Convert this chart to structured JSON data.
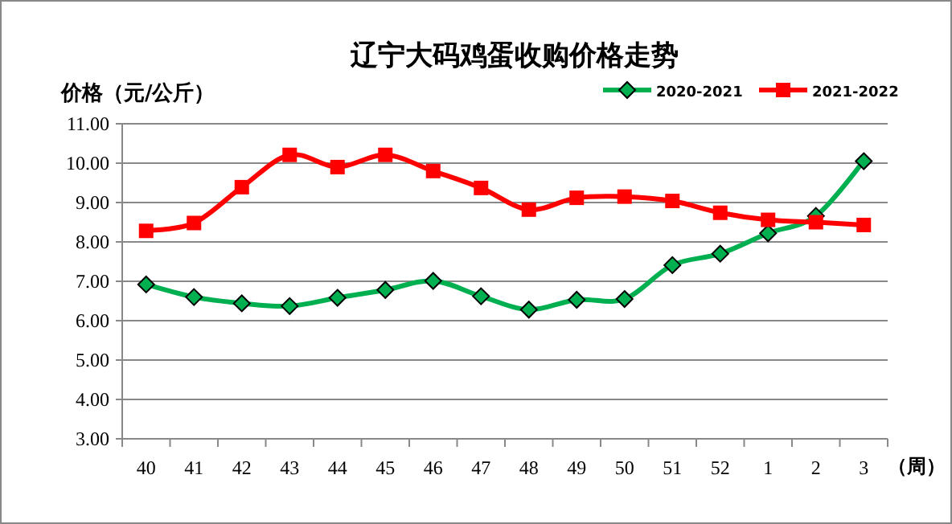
{
  "chart_data": {
    "type": "line",
    "title": "辽宁大码鸡蛋收购价格走势",
    "ylabel": "价格（元/公斤）",
    "xlabel": "（周）",
    "categories": [
      "40",
      "41",
      "42",
      "43",
      "44",
      "45",
      "46",
      "47",
      "48",
      "49",
      "50",
      "51",
      "52",
      "1",
      "2",
      "3"
    ],
    "series": [
      {
        "name": "2020-2021",
        "color": "#00b050",
        "marker": "diamond",
        "values": [
          6.92,
          6.6,
          6.44,
          6.37,
          6.58,
          6.78,
          7.01,
          6.62,
          6.28,
          6.53,
          6.55,
          7.41,
          7.7,
          8.22,
          8.66,
          10.05
        ]
      },
      {
        "name": "2021-2022",
        "color": "#ff0000",
        "marker": "square",
        "values": [
          8.28,
          8.48,
          9.39,
          10.21,
          9.9,
          10.21,
          9.8,
          9.37,
          8.82,
          9.12,
          9.15,
          9.04,
          8.74,
          8.56,
          8.5,
          8.43
        ]
      }
    ],
    "ylim": [
      3,
      11
    ],
    "yticks": [
      {
        "value": 3,
        "label": "3.00"
      },
      {
        "value": 4,
        "label": "4.00"
      },
      {
        "value": 5,
        "label": "5.00"
      },
      {
        "value": 6,
        "label": "6.00"
      },
      {
        "value": 7,
        "label": "7.00"
      },
      {
        "value": 8,
        "label": "8.00"
      },
      {
        "value": 9,
        "label": "9.00"
      },
      {
        "value": 10,
        "label": "10.00"
      },
      {
        "value": 11,
        "label": "11.00"
      }
    ],
    "grid": "y",
    "legend": "top right",
    "line_style": "solid"
  }
}
